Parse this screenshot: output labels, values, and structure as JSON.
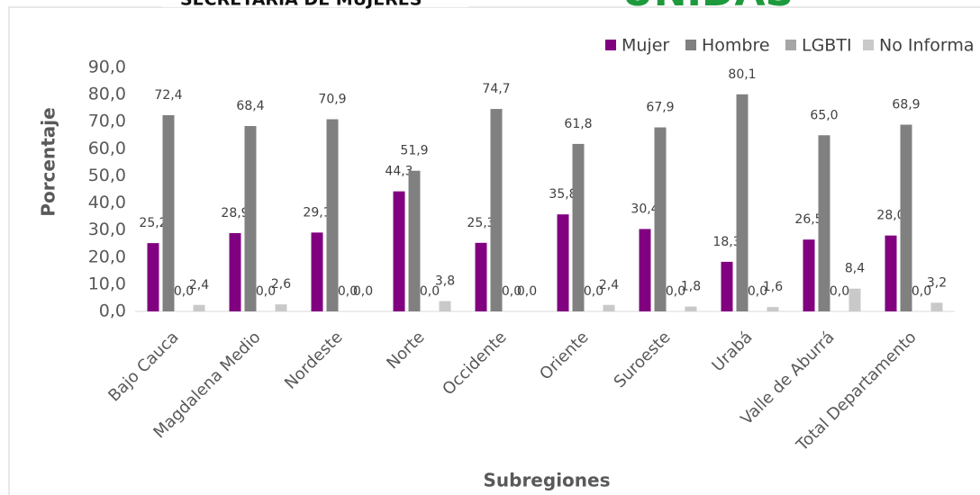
{
  "header": {
    "left": "SECRETARIA DE MUJERES",
    "right": "UNIDAS"
  },
  "chart_data": {
    "type": "bar",
    "x_label": "Subregiones",
    "y_label": "Porcentaje",
    "categories": [
      "Bajo Cauca",
      "Magdalena Medio",
      "Nordeste",
      "Norte",
      "Occidente",
      "Oriente",
      "Suroeste",
      "Urabá",
      "Valle de Aburrá",
      "Total Departamento"
    ],
    "series": [
      {
        "name": "Mujer",
        "color": "#800080",
        "values": [
          25.2,
          28.9,
          29.1,
          44.3,
          25.3,
          35.8,
          30.4,
          18.3,
          26.5,
          28.0
        ],
        "value_labels": [
          "25,2",
          "28,9",
          "29,1",
          "44,3",
          "25,3",
          "35,8",
          "30,4",
          "18,3",
          "26,5",
          "28,0"
        ]
      },
      {
        "name": "Hombre",
        "color": "#808080",
        "values": [
          72.4,
          68.4,
          70.9,
          51.9,
          74.7,
          61.8,
          67.9,
          80.1,
          65.0,
          68.9
        ],
        "value_labels": [
          "72,4",
          "68,4",
          "70,9",
          "51,9",
          "74,7",
          "61,8",
          "67,9",
          "80,1",
          "65,0",
          "68,9"
        ]
      },
      {
        "name": "LGBTI",
        "color": "#a6a6a6",
        "values": [
          0,
          0,
          0,
          0,
          0,
          0,
          0,
          0,
          0,
          0
        ],
        "value_labels": [
          "0,0",
          "0,0",
          "0,0",
          "0,0",
          "0,0",
          "0,0",
          "0,0",
          "0,0",
          "0,0",
          "0,0"
        ]
      },
      {
        "name": "No Informa",
        "color": "#c9c9c9",
        "values": [
          2.4,
          2.6,
          0,
          3.8,
          0,
          2.4,
          1.8,
          1.6,
          8.4,
          3.2
        ],
        "value_labels": [
          "2,4",
          "2,6",
          "0,0",
          "3,8",
          "0,0",
          "2,4",
          "1,8",
          "1,6",
          "8,4",
          "3,2"
        ]
      }
    ],
    "ylim": [
      0,
      90
    ],
    "yticks": [
      {
        "value": 0,
        "label": "0,0"
      },
      {
        "value": 10,
        "label": "10,0"
      },
      {
        "value": 20,
        "label": "20,0"
      },
      {
        "value": 30,
        "label": "30,0"
      },
      {
        "value": 40,
        "label": "40,0"
      },
      {
        "value": 50,
        "label": "50,0"
      },
      {
        "value": 60,
        "label": "60,0"
      },
      {
        "value": 70,
        "label": "70,0"
      },
      {
        "value": 80,
        "label": "80,0"
      },
      {
        "value": 90,
        "label": "90,0"
      }
    ],
    "grid": false,
    "legend": "top-right"
  }
}
